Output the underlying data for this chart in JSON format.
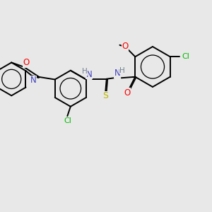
{
  "background_color": "#e8e8e8",
  "atom_colors": {
    "C": "#000000",
    "N": "#4040c0",
    "O": "#ff0000",
    "S": "#b8b800",
    "Cl": "#00bb00",
    "H": "#708090"
  },
  "bond_color": "#000000",
  "figsize": [
    3.0,
    3.0
  ],
  "dpi": 100
}
